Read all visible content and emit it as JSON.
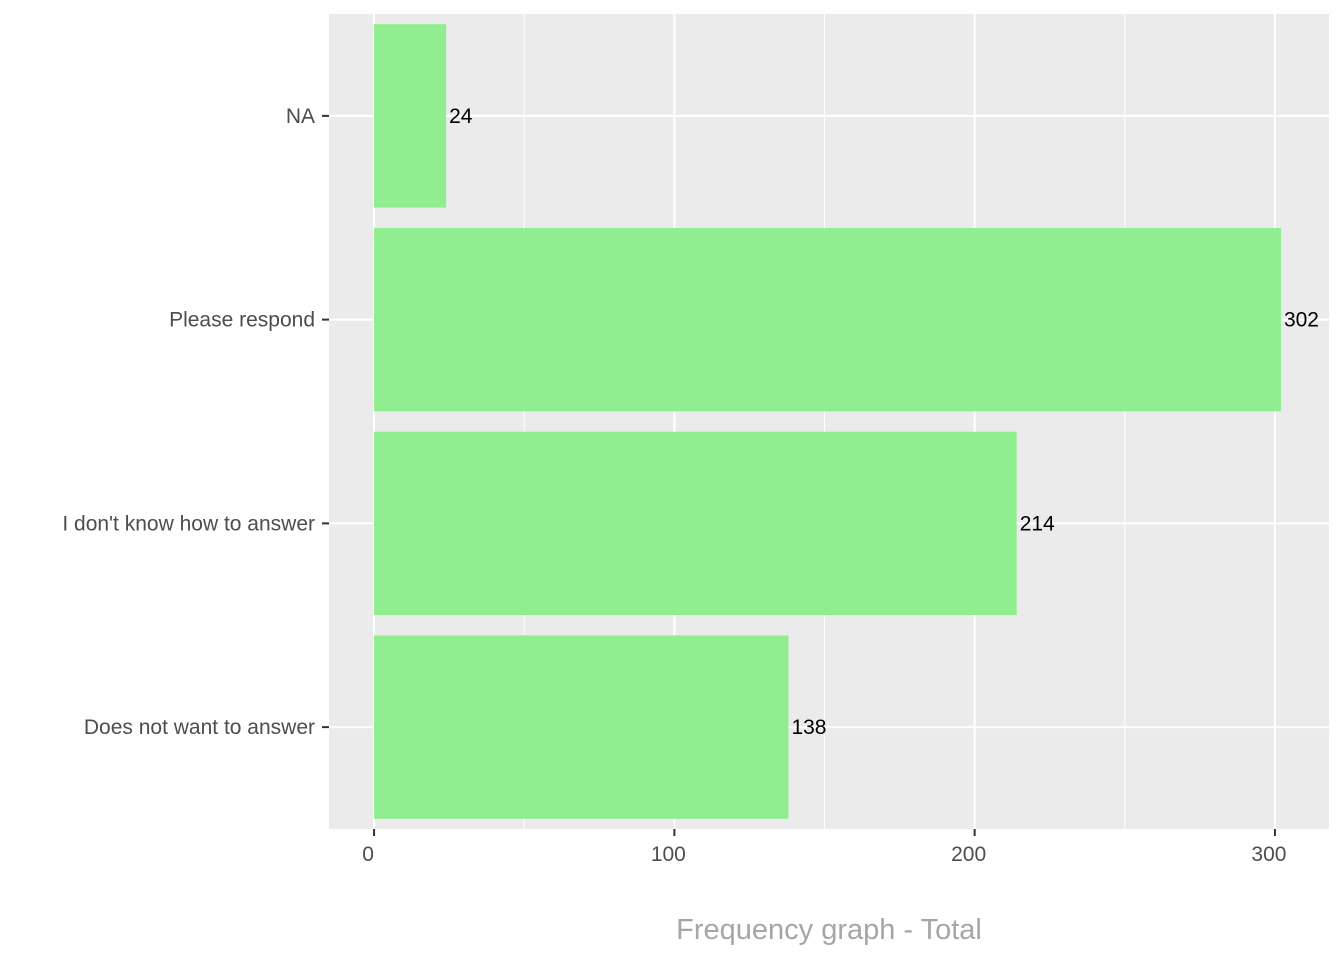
{
  "chart_data": {
    "type": "bar",
    "orientation": "horizontal",
    "categories": [
      "NA",
      "Please respond",
      "I don't know how to answer",
      "Does not want to answer"
    ],
    "values": [
      24,
      302,
      214,
      138
    ],
    "data_labels": [
      "24",
      "302",
      "214",
      "138"
    ],
    "title": "",
    "xlabel": "Frequency graph - Total",
    "ylabel": "",
    "xlim": [
      -15,
      318
    ],
    "xticks": [
      0,
      100,
      200,
      300
    ],
    "xtick_labels": [
      "0",
      "100",
      "200",
      "300"
    ],
    "grid": true,
    "legend": "none",
    "colors": {
      "bar": "#90ee90",
      "panel_background": "#ebebeb",
      "grid": "#ffffff",
      "axis_text": "#4d4d4d",
      "axis_title": "#a6a6a6",
      "data_label": "#000000"
    }
  }
}
